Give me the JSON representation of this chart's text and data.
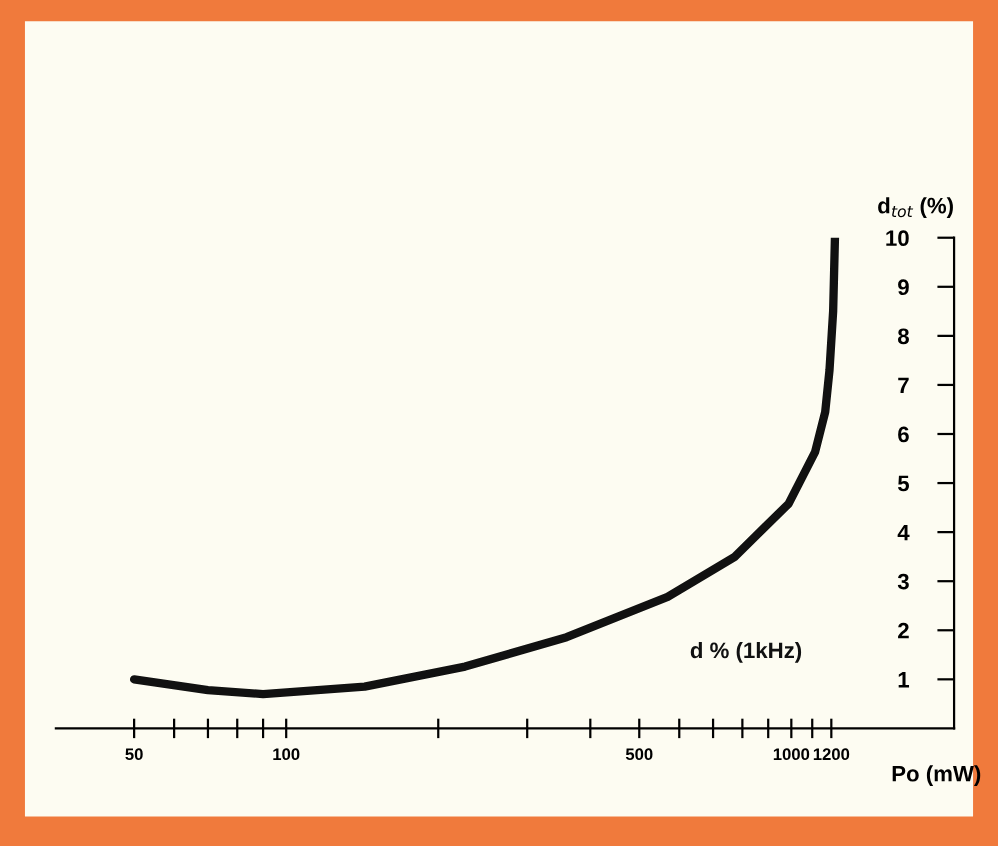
{
  "chart_data": {
    "type": "line",
    "xlabel": "Po (mW)",
    "ylabel": "d$_{tot}$ (%)",
    "log": "x",
    "grid": false,
    "legend": false,
    "marker": "none",
    "line_style": "solid",
    "series": [
      {
        "name": "d % (1kHz)",
        "color": "#111111",
        "x": [
          50,
          70,
          90,
          143,
          226,
          359,
          569,
          771,
          988,
          1114,
          1167,
          1190,
          1210,
          1220
        ],
        "values": [
          1.0,
          0.78,
          0.7,
          0.85,
          1.26,
          1.86,
          2.68,
          3.49,
          4.58,
          5.63,
          6.45,
          7.3,
          8.5,
          10.0
        ]
      }
    ],
    "xlim": [
      35,
      2100
    ],
    "xticks": [
      50,
      {
        "value": 60,
        "label": null
      },
      {
        "value": 70,
        "label": null
      },
      {
        "value": 80,
        "label": null
      },
      {
        "value": 90,
        "label": null
      },
      100,
      {
        "value": 200,
        "label": null
      },
      {
        "value": 300,
        "label": null
      },
      {
        "value": 400,
        "label": null
      },
      500,
      {
        "value": 600,
        "label": null
      },
      {
        "value": 700,
        "label": null
      },
      {
        "value": 800,
        "label": null
      },
      {
        "value": 900,
        "label": null
      },
      1000,
      {
        "value": 1100,
        "label": null
      },
      1200
    ],
    "ylim": [
      0,
      10
    ],
    "yticks": [
      1,
      2,
      3,
      4,
      5,
      6,
      7,
      8,
      9,
      10
    ]
  }
}
